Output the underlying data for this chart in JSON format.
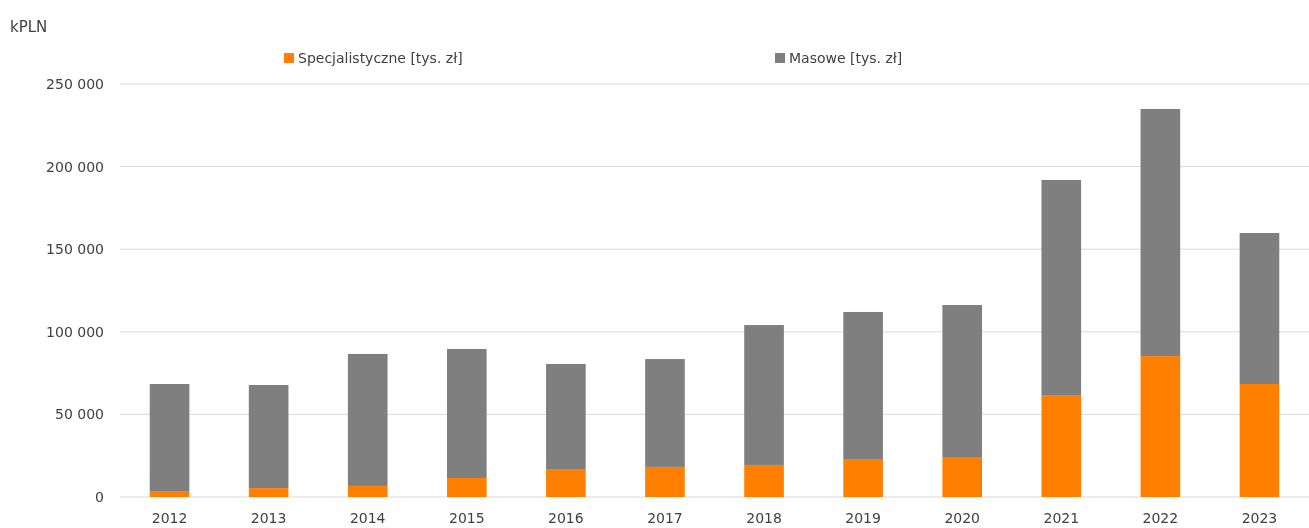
{
  "chart_data": {
    "type": "bar",
    "ylabel": "kPLN",
    "stacked": true,
    "grid": "y",
    "legend": "top",
    "categories": [
      "2012",
      "2013",
      "2014",
      "2015",
      "2016",
      "2017",
      "2018",
      "2019",
      "2020",
      "2021",
      "2022",
      "2023"
    ],
    "series": [
      {
        "name": "Specjalistyczne [tys. zł]",
        "color": "#ff7f00",
        "values": [
          3600,
          5400,
          6700,
          11500,
          16900,
          18200,
          19400,
          23000,
          24200,
          61700,
          85300,
          68400
        ]
      },
      {
        "name": "Masowe [tys. zł]",
        "color": "#7f7f7f",
        "values": [
          64800,
          62400,
          79900,
          78100,
          63600,
          65300,
          84700,
          89000,
          92000,
          130200,
          149600,
          91400
        ]
      }
    ],
    "ylim": [
      0,
      250000
    ],
    "yticks": [
      {
        "value": 0,
        "label": "0"
      },
      {
        "value": 50000,
        "label": "50 000"
      },
      {
        "value": 100000,
        "label": "100 000"
      },
      {
        "value": 150000,
        "label": "150 000"
      },
      {
        "value": 200000,
        "label": "200 000"
      },
      {
        "value": 250000,
        "label": "250 000"
      }
    ]
  }
}
